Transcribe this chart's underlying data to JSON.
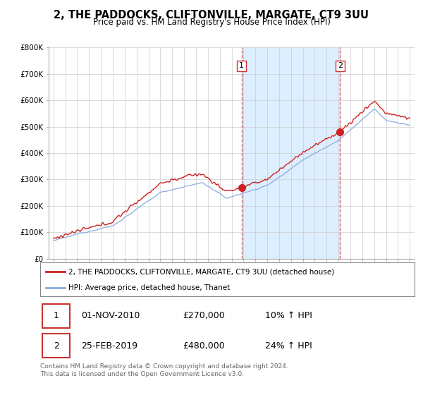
{
  "title": "2, THE PADDOCKS, CLIFTONVILLE, MARGATE, CT9 3UU",
  "subtitle": "Price paid vs. HM Land Registry's House Price Index (HPI)",
  "ylim": [
    0,
    800000
  ],
  "yticks": [
    0,
    100000,
    200000,
    300000,
    400000,
    500000,
    600000,
    700000,
    800000
  ],
  "ytick_labels": [
    "£0",
    "£100K",
    "£200K",
    "£300K",
    "£400K",
    "£500K",
    "£600K",
    "£700K",
    "£800K"
  ],
  "bg_color": "#ffffff",
  "plot_bg_color": "#ffffff",
  "shade_color": "#ddeeff",
  "hpi_color": "#88aadd",
  "price_color": "#cc2222",
  "vline_color": "#cc3333",
  "legend_label_price": "2, THE PADDOCKS, CLIFTONVILLE, MARGATE, CT9 3UU (detached house)",
  "legend_label_hpi": "HPI: Average price, detached house, Thanet",
  "sale1_label": "1",
  "sale1_date": "01-NOV-2010",
  "sale1_price": "£270,000",
  "sale1_hpi": "10% ↑ HPI",
  "sale1_year": 2010.833,
  "sale1_value": 270000,
  "sale2_label": "2",
  "sale2_date": "25-FEB-2019",
  "sale2_price": "£480,000",
  "sale2_hpi": "24% ↑ HPI",
  "sale2_year": 2019.125,
  "sale2_value": 480000,
  "footnote": "Contains HM Land Registry data © Crown copyright and database right 2024.\nThis data is licensed under the Open Government Licence v3.0."
}
